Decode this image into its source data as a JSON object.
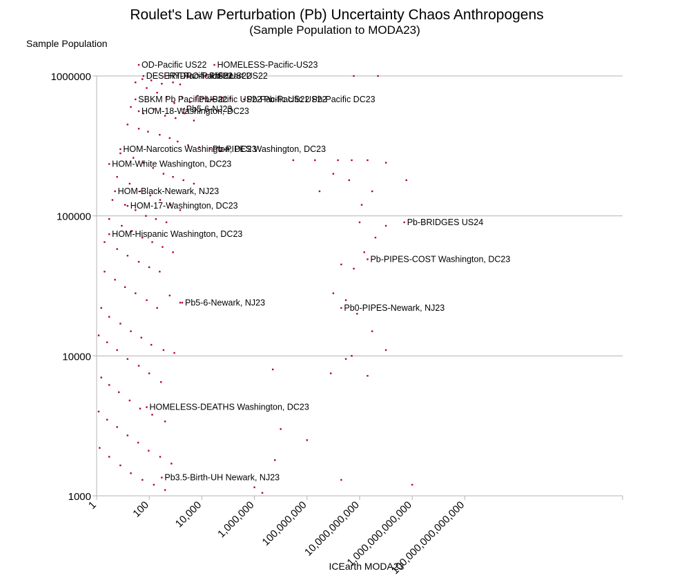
{
  "chart_data": {
    "type": "scatter",
    "title": "Roulet's Law Perturbation (Pb) Uncertainty Chaos Anthropogens",
    "subtitle": "(Sample Population to MODA23)",
    "xlabel": "ICEarth MODA23",
    "ylabel": "Sample Population",
    "x_scale": "log",
    "y_scale": "log",
    "xlim": [
      1,
      1e+20
    ],
    "ylim": [
      1000,
      1000000
    ],
    "x_ticks": [
      1,
      100,
      10000,
      1000000,
      100000000,
      10000000000,
      1000000000000,
      100000000000000
    ],
    "x_tick_labels": [
      "1",
      "100",
      "10,000",
      "1,000,000",
      "100,000,000",
      "10,000,000,000",
      "1,000,000,000,000",
      "100,000,000,000,000"
    ],
    "y_ticks": [
      1000,
      10000,
      100000,
      1000000
    ],
    "y_tick_labels": [
      "1000",
      "10000",
      "100000",
      "1000000"
    ],
    "grid": "horizontal",
    "marker_color": "#b0003a",
    "annotations": [
      {
        "text": "OD-Pacific US22",
        "x": 40,
        "y": 1200000
      },
      {
        "text": "HOMELESS-Pacific-US23",
        "x": 30000,
        "y": 1200000
      },
      {
        "text": "DESERT-Pacific US22",
        "x": 60,
        "y": 1000000
      },
      {
        "text": "HYDRO-Pacific US22",
        "x": 400,
        "y": 1000000
      },
      {
        "text": "Pb-Heart US22",
        "x": 15000,
        "y": 1000000
      },
      {
        "text": "SBKM Pb Pacific US22",
        "x": 30,
        "y": 680000
      },
      {
        "text": "Pb-Pacific US22 Pb-Pacific US22",
        "x": 6000,
        "y": 680000
      },
      {
        "text": "Pb-Pacific US22 Pb-Pacific DC23",
        "x": 400000,
        "y": 680000
      },
      {
        "text": "HOM-18-Washington, DC23",
        "x": 40,
        "y": 560000
      },
      {
        "text": "Pb5-6-NJ23",
        "x": 2000,
        "y": 580000
      },
      {
        "text": "HOM-Narcotics Washington, DC23",
        "x": 8,
        "y": 300000
      },
      {
        "text": "Pb-PIPES Washington, DC23",
        "x": 20000,
        "y": 300000
      },
      {
        "text": "HOM-White Washington, DC23",
        "x": 3,
        "y": 235000
      },
      {
        "text": "HOM-Black-Newark, NJ23",
        "x": 5,
        "y": 150000
      },
      {
        "text": "HOM-17-Washington, DC23",
        "x": 15,
        "y": 118000
      },
      {
        "text": "Pb-BRIDGES US24",
        "x": 500000000000.0,
        "y": 90000
      },
      {
        "text": "HOM-Hispanic Washington, DC23",
        "x": 3,
        "y": 74000
      },
      {
        "text": "Pb-PIPES-COST Washington, DC23",
        "x": 20000000000.0,
        "y": 49000
      },
      {
        "text": "Pb5-6-Newark, NJ23",
        "x": 1800,
        "y": 24000
      },
      {
        "text": "Pb0-PIPES-Newark, NJ23",
        "x": 2000000000.0,
        "y": 22000
      },
      {
        "text": "HOMELESS-DEATHS Washington, DC23",
        "x": 80,
        "y": 4300
      },
      {
        "text": "Pb3.5-Birth-UH Newark, NJ23",
        "x": 300,
        "y": 1350
      }
    ],
    "series": [
      {
        "points": [
          [
            30,
            900000
          ],
          [
            55,
            950000
          ],
          [
            120,
            930000
          ],
          [
            300,
            880000
          ],
          [
            800,
            900000
          ],
          [
            1500,
            870000
          ],
          [
            3000,
            980000
          ],
          [
            6000000000.0,
            1000000.0
          ],
          [
            50000000000.0,
            1000000.0
          ],
          [
            80,
            820000
          ],
          [
            200,
            760000
          ],
          [
            450,
            700000
          ],
          [
            900,
            640000
          ],
          [
            1800,
            700000
          ],
          [
            3500,
            650000
          ],
          [
            7000,
            720000
          ],
          [
            12000,
            690000
          ],
          [
            25000,
            680000
          ],
          [
            60000,
            700000
          ],
          [
            120000,
            690000
          ],
          [
            20,
            600000
          ],
          [
            60,
            540000
          ],
          [
            150,
            580000
          ],
          [
            400,
            520000
          ],
          [
            1000,
            500000
          ],
          [
            2200,
            540000
          ],
          [
            5000,
            480000
          ],
          [
            15,
            450000
          ],
          [
            40,
            420000
          ],
          [
            90,
            400000
          ],
          [
            250,
            380000
          ],
          [
            600,
            360000
          ],
          [
            1200,
            340000
          ],
          [
            3000,
            320000
          ],
          [
            8000,
            310000
          ],
          [
            20000,
            300000
          ],
          [
            50000,
            290000
          ],
          [
            100000,
            300000
          ],
          [
            30000000.0,
            250000
          ],
          [
            200000000.0,
            250000
          ],
          [
            1500000000.0,
            250000
          ],
          [
            5000000000.0,
            250000
          ],
          [
            20000000000.0,
            250000
          ],
          [
            100000000000.0,
            240000
          ],
          [
            600000000000.0,
            180000
          ],
          [
            8,
            280000
          ],
          [
            25,
            260000
          ],
          [
            60,
            240000
          ],
          [
            140,
            220000
          ],
          [
            350,
            200000
          ],
          [
            800,
            190000
          ],
          [
            2000,
            180000
          ],
          [
            5000,
            170000
          ],
          [
            6,
            190000
          ],
          [
            18,
            170000
          ],
          [
            45,
            150000
          ],
          [
            110,
            140000
          ],
          [
            260,
            130000
          ],
          [
            650,
            120000
          ],
          [
            1500,
            110000
          ],
          [
            4,
            130000
          ],
          [
            12,
            120000
          ],
          [
            30,
            110000
          ],
          [
            75,
            100000
          ],
          [
            180,
            95000
          ],
          [
            450,
            90000
          ],
          [
            300000000.0,
            150000
          ],
          [
            1000000000.0,
            200000
          ],
          [
            4000000000.0,
            180000
          ],
          [
            12000000000.0,
            120000
          ],
          [
            30000000000.0,
            150000
          ],
          [
            3,
            95000
          ],
          [
            9,
            85000
          ],
          [
            22,
            78000
          ],
          [
            55,
            70000
          ],
          [
            130,
            65000
          ],
          [
            320,
            60000
          ],
          [
            800,
            55000
          ],
          [
            2,
            65000
          ],
          [
            6,
            58000
          ],
          [
            15,
            52000
          ],
          [
            40,
            47000
          ],
          [
            100,
            43000
          ],
          [
            250,
            40000
          ],
          [
            10000000000.0,
            90000
          ],
          [
            40000000000.0,
            70000
          ],
          [
            100000000000.0,
            85000
          ],
          [
            2000000000.0,
            45000
          ],
          [
            6000000000.0,
            42000
          ],
          [
            15000000000.0,
            55000
          ],
          [
            2,
            40000
          ],
          [
            5,
            35000
          ],
          [
            12,
            31000
          ],
          [
            30,
            28000
          ],
          [
            80,
            25000
          ],
          [
            200,
            22000
          ],
          [
            600,
            27000
          ],
          [
            1500,
            24000
          ],
          [
            1000000000.0,
            28000
          ],
          [
            3000000000.0,
            25000
          ],
          [
            8000000000.0,
            20000
          ],
          [
            30000000000.0,
            15000
          ],
          [
            100000000000.0,
            11000
          ],
          [
            5000000000.0,
            10000
          ],
          [
            1.5,
            22000
          ],
          [
            3,
            19000
          ],
          [
            8,
            17000
          ],
          [
            20,
            15000
          ],
          [
            50,
            13500
          ],
          [
            120,
            12000
          ],
          [
            350,
            11000
          ],
          [
            900,
            10500
          ],
          [
            1.2,
            14000
          ],
          [
            2.5,
            12500
          ],
          [
            6,
            11000
          ],
          [
            15,
            9500
          ],
          [
            40,
            8500
          ],
          [
            100,
            7500
          ],
          [
            280,
            6500
          ],
          [
            5000000.0,
            8000
          ],
          [
            800000000.0,
            7500
          ],
          [
            3000000000.0,
            9500
          ],
          [
            20000000000.0,
            7200
          ],
          [
            1.5,
            7000
          ],
          [
            3,
            6200
          ],
          [
            7,
            5500
          ],
          [
            18,
            4800
          ],
          [
            45,
            4200
          ],
          [
            130,
            3800
          ],
          [
            400,
            3400
          ],
          [
            1.2,
            4000
          ],
          [
            2.5,
            3500
          ],
          [
            6,
            3100
          ],
          [
            15,
            2700
          ],
          [
            38,
            2400
          ],
          [
            95,
            2100
          ],
          [
            260,
            1900
          ],
          [
            700,
            1700
          ],
          [
            10000000.0,
            3000
          ],
          [
            100000000.0,
            2500
          ],
          [
            6000000.0,
            1800
          ],
          [
            2000000000.0,
            1300
          ],
          [
            1000000000000.0,
            1200
          ],
          [
            1000000.0,
            1150
          ],
          [
            1.3,
            2200
          ],
          [
            3,
            1900
          ],
          [
            8,
            1650
          ],
          [
            20,
            1450
          ],
          [
            55,
            1300
          ],
          [
            150,
            1200
          ],
          [
            400,
            1100
          ],
          [
            2000000.0,
            1050
          ]
        ]
      }
    ]
  }
}
